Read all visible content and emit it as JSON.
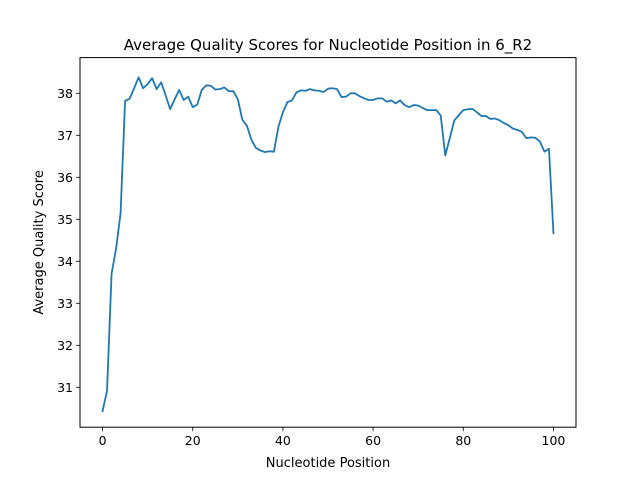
{
  "chart_data": {
    "type": "line",
    "title": "Average Quality Scores for Nucleotide Position in 6_R2",
    "xlabel": "Nucleotide Position",
    "ylabel": "Average Quality Score",
    "xlim": [
      -5,
      105
    ],
    "ylim": [
      30.05,
      38.85
    ],
    "xticks": [
      0,
      20,
      40,
      60,
      80,
      100
    ],
    "yticks": [
      31,
      32,
      33,
      34,
      35,
      36,
      37,
      38
    ],
    "grid": false,
    "line_color": "#1f77b4",
    "series": [
      {
        "name": "",
        "x": [
          0,
          1,
          2,
          3,
          4,
          5,
          6,
          7,
          8,
          9,
          10,
          11,
          12,
          13,
          14,
          15,
          16,
          17,
          18,
          19,
          20,
          21,
          22,
          23,
          24,
          25,
          26,
          27,
          28,
          29,
          30,
          31,
          32,
          33,
          34,
          35,
          36,
          37,
          38,
          39,
          40,
          41,
          42,
          43,
          44,
          45,
          46,
          47,
          48,
          49,
          50,
          51,
          52,
          53,
          54,
          55,
          56,
          57,
          58,
          59,
          60,
          61,
          62,
          63,
          64,
          65,
          66,
          67,
          68,
          69,
          70,
          71,
          72,
          73,
          74,
          75,
          76,
          77,
          78,
          79,
          80,
          81,
          82,
          83,
          84,
          85,
          86,
          87,
          88,
          89,
          90,
          91,
          92,
          93,
          94,
          95,
          96,
          97,
          98,
          99,
          100
        ],
        "values": [
          30.43,
          30.92,
          33.7,
          34.3,
          35.15,
          37.82,
          37.87,
          38.12,
          38.38,
          38.12,
          38.22,
          38.36,
          38.1,
          38.26,
          37.95,
          37.62,
          37.86,
          38.08,
          37.84,
          37.92,
          37.67,
          37.73,
          38.08,
          38.19,
          38.18,
          38.09,
          38.1,
          38.14,
          38.05,
          38.05,
          37.86,
          37.37,
          37.23,
          36.9,
          36.7,
          36.64,
          36.6,
          36.62,
          36.61,
          37.2,
          37.55,
          37.79,
          37.83,
          38.02,
          38.07,
          38.06,
          38.1,
          38.07,
          38.06,
          38.03,
          38.11,
          38.12,
          38.1,
          37.91,
          37.92,
          38.0,
          38.0,
          37.93,
          37.88,
          37.84,
          37.84,
          37.88,
          37.88,
          37.8,
          37.83,
          37.76,
          37.83,
          37.72,
          37.67,
          37.72,
          37.71,
          37.65,
          37.6,
          37.6,
          37.6,
          37.47,
          36.52,
          36.93,
          37.35,
          37.48,
          37.6,
          37.62,
          37.63,
          37.55,
          37.46,
          37.46,
          37.39,
          37.4,
          37.36,
          37.29,
          37.24,
          37.16,
          37.13,
          37.08,
          36.93,
          36.95,
          36.94,
          36.85,
          36.61,
          36.68,
          34.67
        ]
      }
    ]
  }
}
